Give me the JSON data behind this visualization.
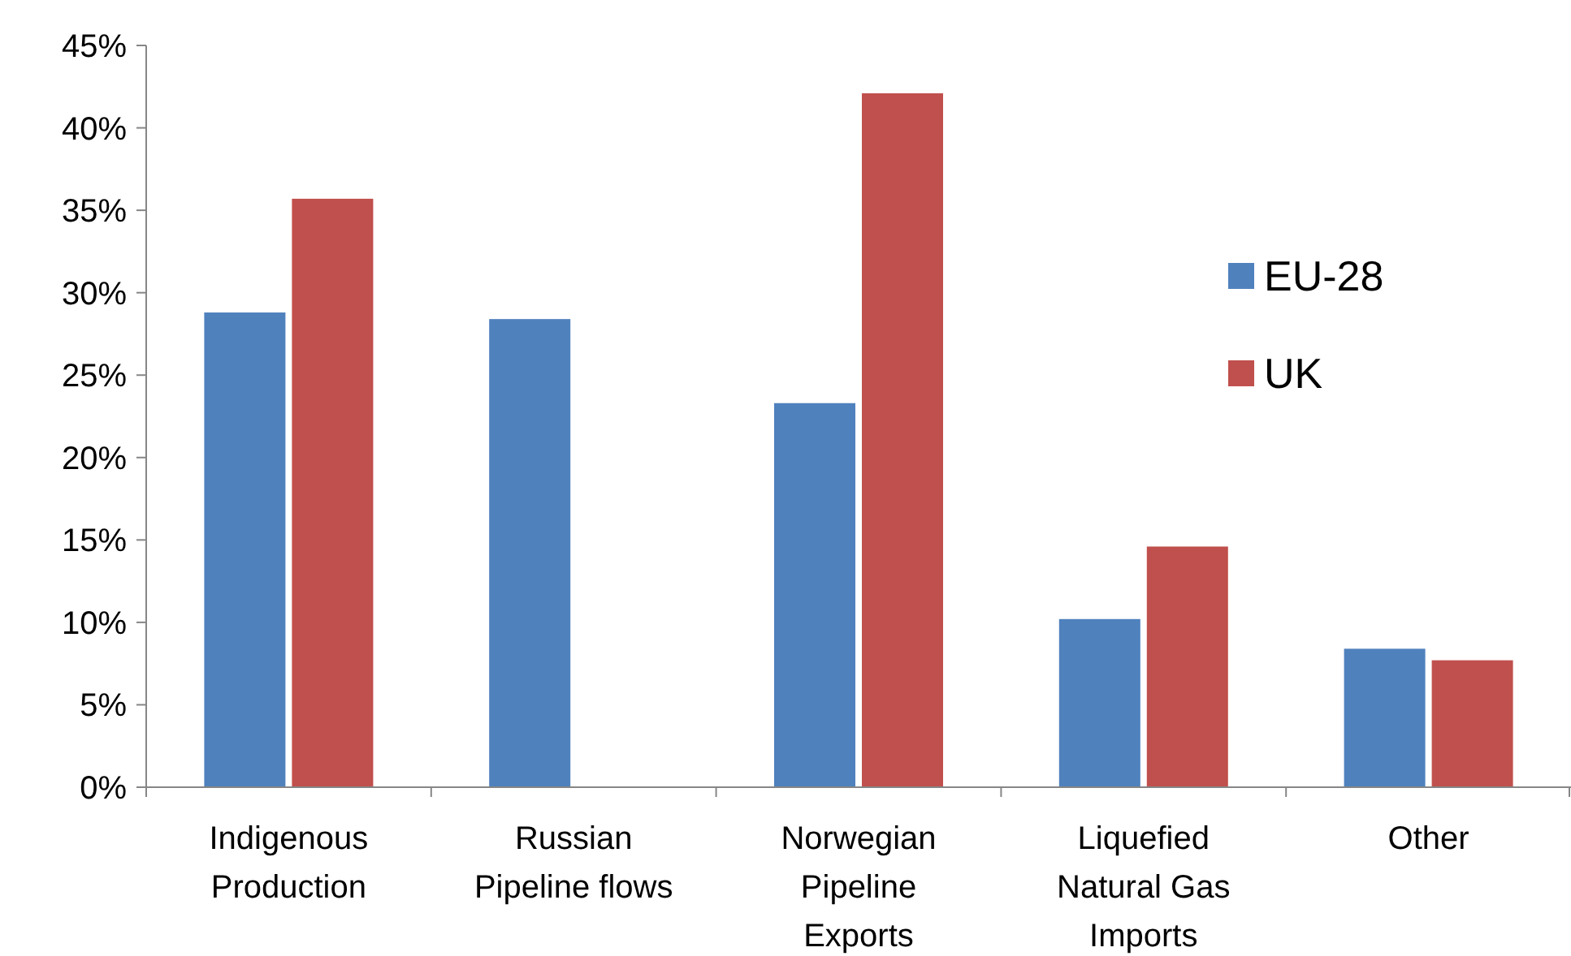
{
  "chart_data": {
    "type": "bar",
    "categories": [
      "Indigenous\nProduction",
      "Russian\nPipeline flows",
      "Norwegian\nPipeline\nExports",
      "Liquefied\nNatural Gas\nImports",
      "Other"
    ],
    "series": [
      {
        "name": "EU-28",
        "color": "#4f81bd",
        "values": [
          28.8,
          28.4,
          23.3,
          10.2,
          8.4
        ]
      },
      {
        "name": "UK",
        "color": "#c0504d",
        "values": [
          35.7,
          0,
          42.1,
          14.6,
          7.7
        ]
      }
    ],
    "ylim": [
      0,
      45
    ],
    "yticks": [
      {
        "value": 0,
        "label": "0%"
      },
      {
        "value": 5,
        "label": "5%"
      },
      {
        "value": 10,
        "label": "10%"
      },
      {
        "value": 15,
        "label": "15%"
      },
      {
        "value": 20,
        "label": "20%"
      },
      {
        "value": 25,
        "label": "25%"
      },
      {
        "value": 30,
        "label": "30%"
      },
      {
        "value": 35,
        "label": "35%"
      },
      {
        "value": 40,
        "label": "40%"
      },
      {
        "value": 45,
        "label": "45%"
      }
    ],
    "grid": false,
    "legend": "right"
  }
}
